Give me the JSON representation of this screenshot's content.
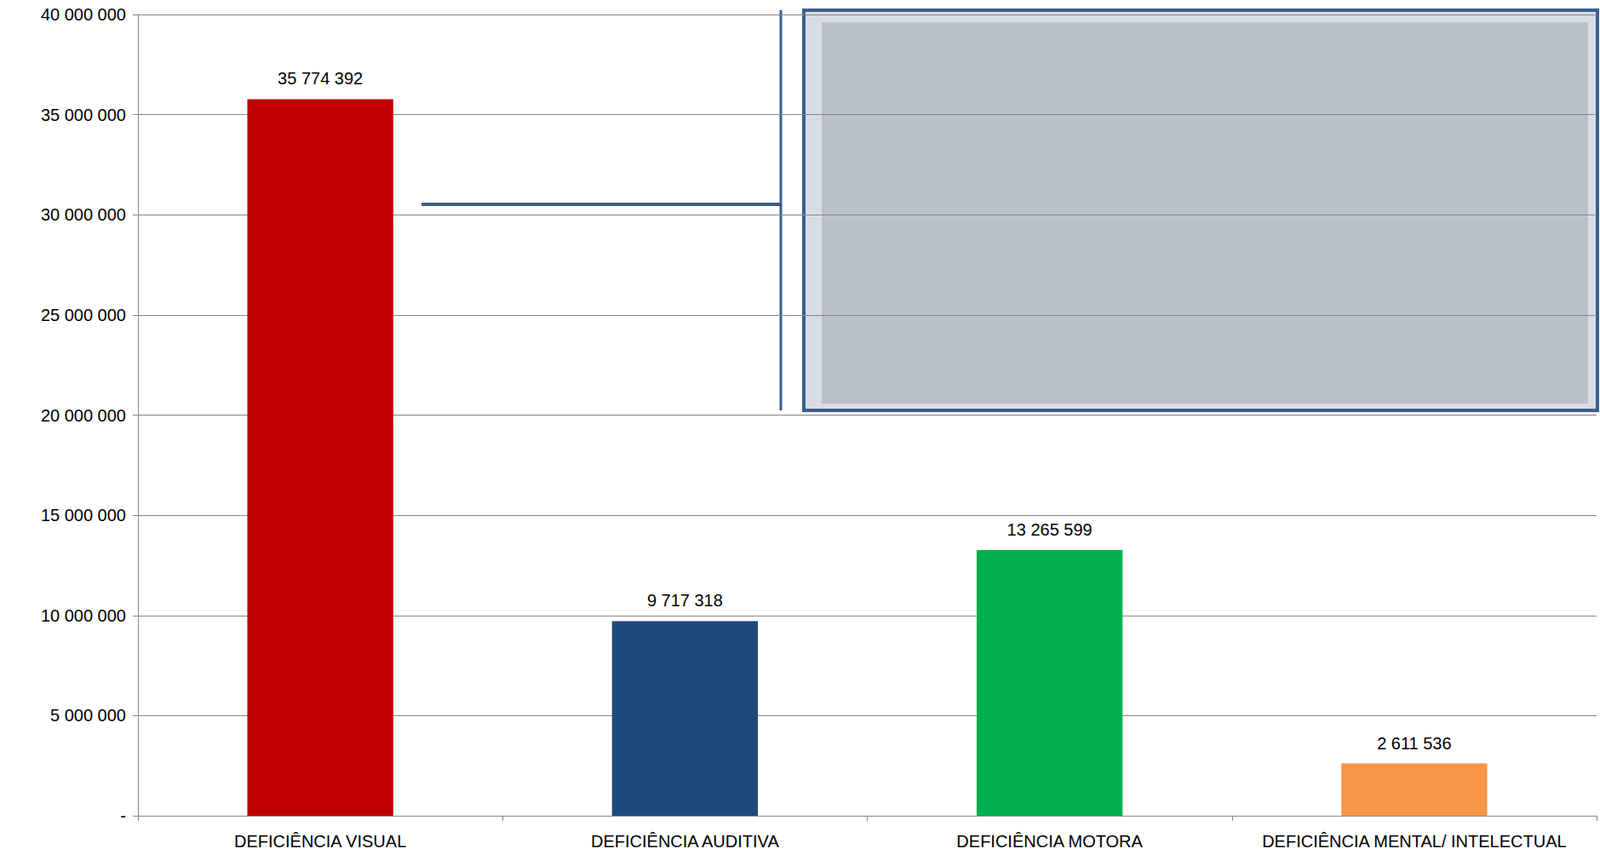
{
  "chart_data": {
    "type": "bar",
    "categories": [
      "DEFICIÊNCIA VISUAL",
      "DEFICIÊNCIA AUDITIVA",
      "DEFICIÊNCIA MOTORA",
      "DEFICIÊNCIA MENTAL/ INTELECTUAL"
    ],
    "values": [
      35774392,
      9717318,
      13265599,
      2611536
    ],
    "value_labels": [
      "35 774 392",
      "9 717 318",
      "13 265 599",
      "2 611 536"
    ],
    "colors": [
      "#c00000",
      "#1f497d",
      "#00b050",
      "#f79646"
    ],
    "ylim": [
      0,
      40000000
    ],
    "yticks": [
      {
        "value": 0,
        "label": "-"
      },
      {
        "value": 5000000,
        "label": "5 000 000"
      },
      {
        "value": 10000000,
        "label": "10 000 000"
      },
      {
        "value": 15000000,
        "label": "15 000 000"
      },
      {
        "value": 20000000,
        "label": "20 000 000"
      },
      {
        "value": 25000000,
        "label": "25 000 000"
      },
      {
        "value": 30000000,
        "label": "30 000 000"
      },
      {
        "value": 35000000,
        "label": "35 000 000"
      },
      {
        "value": 40000000,
        "label": "40 000 000"
      }
    ],
    "grid": true,
    "data_labels": true
  }
}
